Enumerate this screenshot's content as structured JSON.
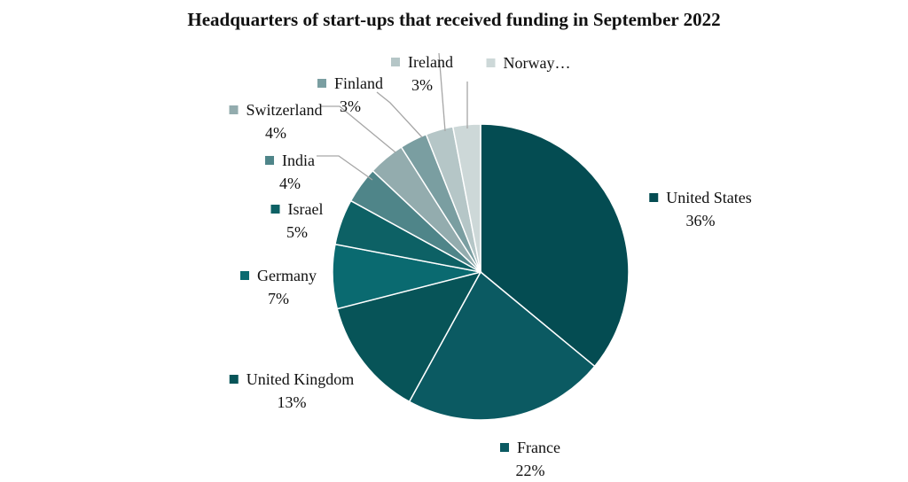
{
  "chart_data": {
    "type": "pie",
    "title": "Headquarters of start-ups that received funding in September 2022",
    "start_angle_deg": 0,
    "direction": "clockwise",
    "legend": "labels-outside",
    "slices": [
      {
        "name": "United States",
        "label": "36%",
        "value": 36,
        "color": "#044c52"
      },
      {
        "name": "France",
        "label": "22%",
        "value": 22,
        "color": "#0b5a62"
      },
      {
        "name": "United Kingdom",
        "label": "13%",
        "value": 13,
        "color": "#075458"
      },
      {
        "name": "Germany",
        "label": "7%",
        "value": 7,
        "color": "#0a6a70"
      },
      {
        "name": "Israel",
        "label": "5%",
        "value": 5,
        "color": "#0d6165"
      },
      {
        "name": "India",
        "label": "4%",
        "value": 4,
        "color": "#4f8589"
      },
      {
        "name": "Switzerland",
        "label": "4%",
        "value": 4,
        "color": "#93acae"
      },
      {
        "name": "Finland",
        "label": "3%",
        "value": 3,
        "color": "#7a9ea1"
      },
      {
        "name": "Ireland",
        "label": "3%",
        "value": 3,
        "color": "#b5c6c7"
      },
      {
        "name": "Norway…",
        "label": "",
        "value": 3,
        "color": "#cdd8d8"
      }
    ]
  }
}
